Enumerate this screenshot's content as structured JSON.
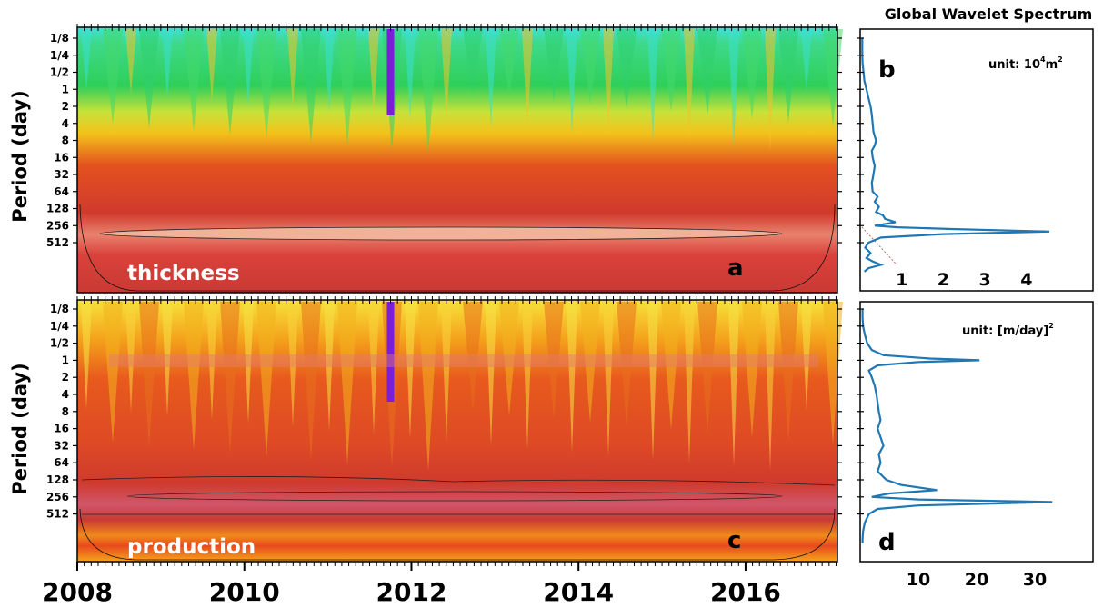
{
  "chart_data": [
    {
      "panel": "a",
      "type": "heatmap",
      "label": "thickness",
      "ylabel": "Period (day)",
      "yticks": [
        "1/8",
        "1/4",
        "1/2",
        "1",
        "2",
        "4",
        "8",
        "16",
        "32",
        "64",
        "128",
        "256",
        "512"
      ],
      "xticks": [
        "2008",
        "2010",
        "2012",
        "2014",
        "2016"
      ],
      "xlim": [
        2008,
        2017.1
      ]
    },
    {
      "panel": "b",
      "type": "line",
      "title": "Global Wavelet Spectrum",
      "unit_prefix": "unit: 10",
      "unit_exp1": "4",
      "unit_mid": "m",
      "unit_exp2": "2",
      "xticks": [
        "1",
        "2",
        "3",
        "4"
      ],
      "xlim": [
        0,
        5.6
      ],
      "series": [
        {
          "color": "#1f77b4",
          "period_log2": [
            -3,
            -2.5,
            -2,
            -1.5,
            -1,
            -0.5,
            0,
            0.5,
            1,
            1.5,
            2,
            2.5,
            3,
            3.3,
            3.6,
            4,
            4.5,
            5,
            5.5,
            6,
            6.3,
            6.6,
            6.9,
            7.2,
            7.4,
            7.6,
            7.8,
            7.9,
            8.0,
            8.1,
            8.2,
            8.35,
            8.5,
            8.7,
            9,
            9.3,
            9.6,
            9.9,
            10.1,
            10.3,
            10.5,
            10.7
          ],
          "values": [
            0.05,
            0.05,
            0.05,
            0.06,
            0.08,
            0.1,
            0.15,
            0.2,
            0.25,
            0.28,
            0.3,
            0.32,
            0.38,
            0.35,
            0.28,
            0.3,
            0.35,
            0.32,
            0.28,
            0.3,
            0.42,
            0.35,
            0.45,
            0.38,
            0.55,
            0.6,
            0.85,
            0.6,
            0.35,
            0.9,
            2.2,
            4.55,
            2.0,
            0.5,
            0.2,
            0.12,
            0.25,
            0.15,
            0.3,
            0.5,
            0.2,
            0.1
          ]
        }
      ]
    },
    {
      "panel": "c",
      "type": "heatmap",
      "label": "production",
      "ylabel": "Period (day)",
      "yticks": [
        "1/8",
        "1/4",
        "1/2",
        "1",
        "2",
        "4",
        "8",
        "16",
        "32",
        "64",
        "128",
        "256",
        "512"
      ],
      "xticks": [
        "2008",
        "2010",
        "2012",
        "2014",
        "2016"
      ],
      "xlim": [
        2008,
        2017.1
      ]
    },
    {
      "panel": "d",
      "type": "line",
      "unit_prefix": "unit: [m/day]",
      "unit_exp2": "2",
      "xticks": [
        "10",
        "20",
        "30"
      ],
      "xlim": [
        0,
        40
      ],
      "series": [
        {
          "color": "#1f77b4",
          "period_log2": [
            -3,
            -2.5,
            -2,
            -1.5,
            -1,
            -0.6,
            -0.3,
            -0.1,
            0,
            0.1,
            0.3,
            0.6,
            1,
            1.5,
            2,
            2.5,
            3,
            3.5,
            4,
            4.5,
            5,
            5.5,
            6,
            6.5,
            7,
            7.3,
            7.6,
            7.8,
            8.0,
            8.15,
            8.3,
            8.5,
            8.7,
            9,
            9.5,
            10,
            10.5,
            10.7
          ],
          "values": [
            0.4,
            0.4,
            0.5,
            0.8,
            1.2,
            2.0,
            4.0,
            12,
            20.5,
            10,
            3.0,
            1.5,
            2.0,
            2.5,
            2.8,
            3.0,
            3.2,
            3.5,
            3.0,
            3.5,
            4.0,
            3.2,
            3.5,
            3.0,
            4.5,
            7.0,
            13.2,
            5.0,
            2.0,
            10,
            33.0,
            10,
            3.0,
            1.5,
            0.8,
            0.5,
            0.4,
            0.4
          ]
        }
      ]
    }
  ]
}
